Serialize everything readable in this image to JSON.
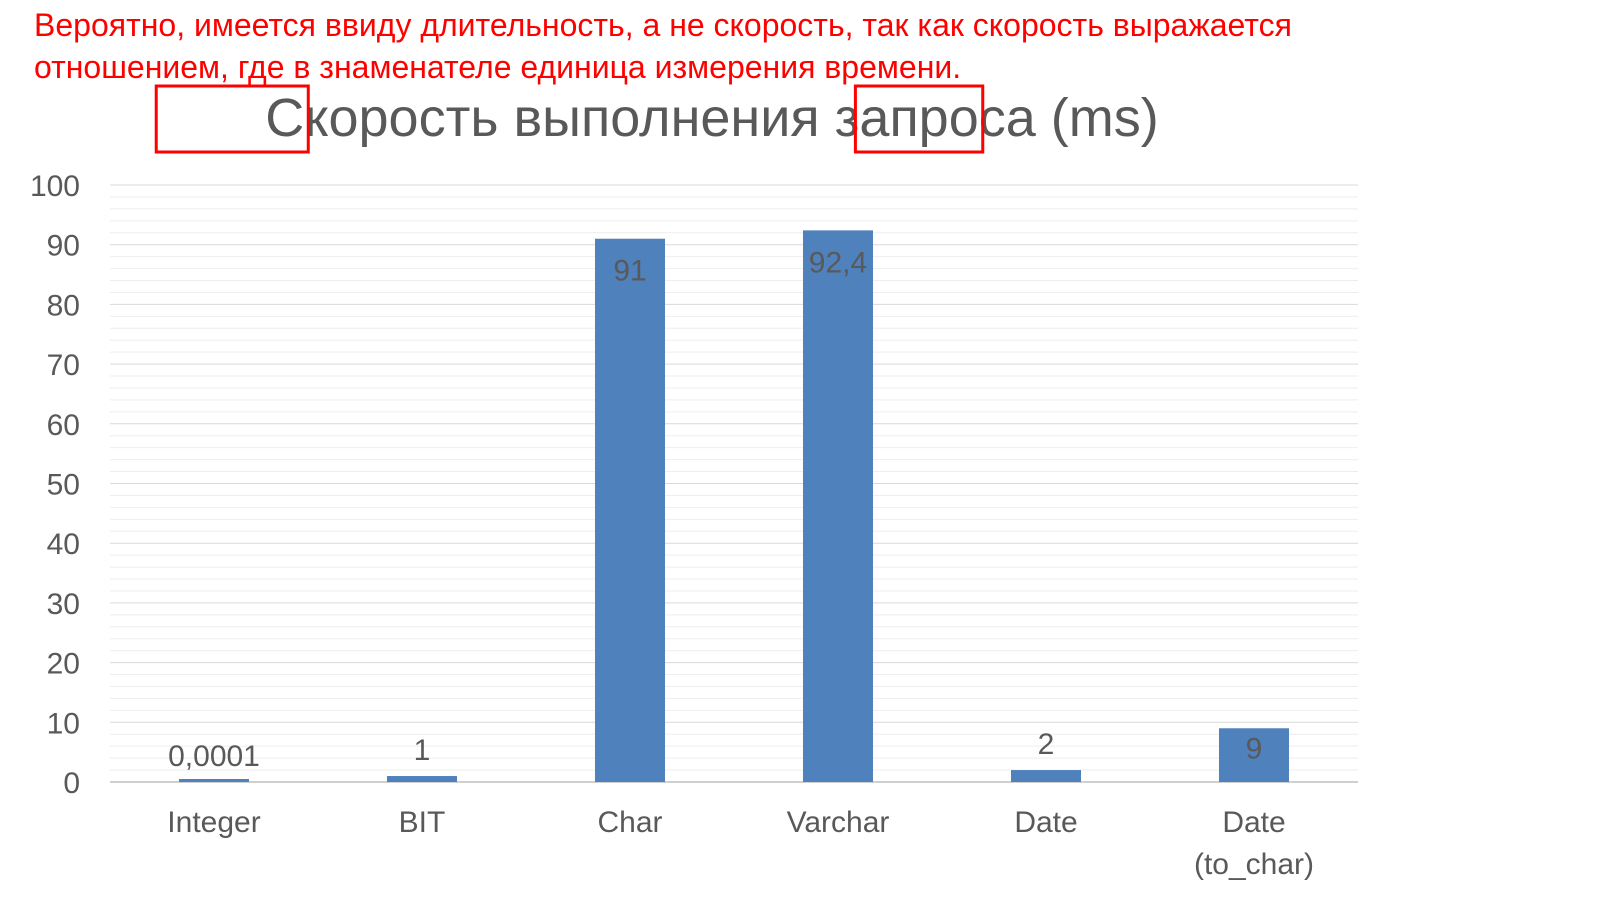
{
  "annotation": {
    "lines": [
      "Вероятно, имеется ввиду длительность, а не скорость, так как скорость выражается",
      "отношением, где в знаменателе единица измерения времени."
    ],
    "highlighted_terms": [
      "Скорость",
      "(ms)"
    ],
    "color": "#ff0000"
  },
  "chart_data": {
    "type": "bar",
    "title": "Скорость выполнения запроса (ms)",
    "title_parts": [
      "Скорость",
      " выполнения запроса ",
      "(ms)"
    ],
    "xlabel": "",
    "ylabel": "",
    "categories": [
      [
        "Integer"
      ],
      [
        "BIT"
      ],
      [
        "Char"
      ],
      [
        "Varchar"
      ],
      [
        "Date"
      ],
      [
        "Date",
        "(to_char)"
      ]
    ],
    "values": [
      0.0001,
      1,
      91,
      92.4,
      2,
      9
    ],
    "data_labels": [
      "0,0001",
      "1",
      "91",
      "92,4",
      "2",
      "9"
    ],
    "ylim": [
      0,
      100
    ],
    "yticks": [
      0,
      10,
      20,
      30,
      40,
      50,
      60,
      70,
      80,
      90,
      100
    ],
    "grid": true,
    "legend": false,
    "colors": {
      "bar": "#4f81bd",
      "text": "#595959",
      "grid": "#d9d9d9",
      "highlight_box": "#ff0000"
    }
  }
}
